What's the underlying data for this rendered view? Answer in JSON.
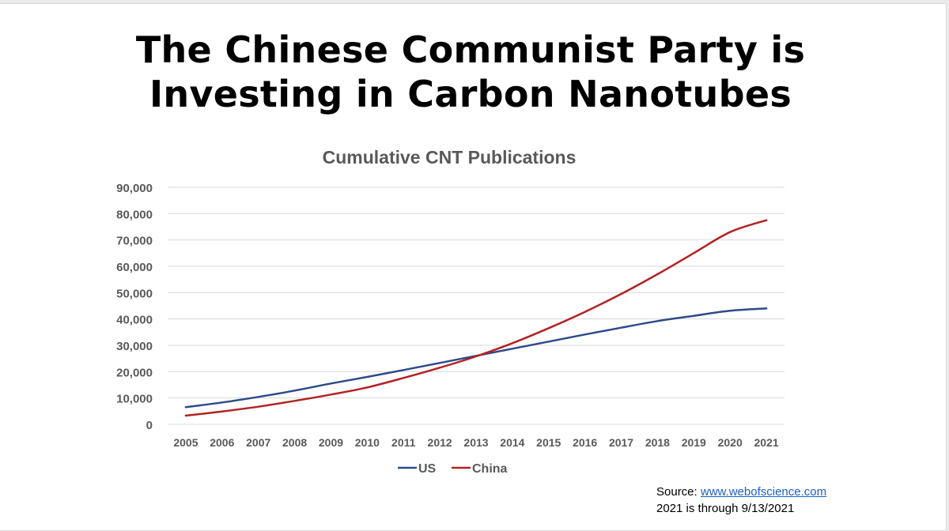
{
  "slide": {
    "title_line1": "The Chinese Communist Party is",
    "title_line2": "Investing in Carbon Nanotubes",
    "source_label": "Source:",
    "source_link": "www.webofscience.com",
    "note": "2021 is through 9/13/2021"
  },
  "colors": {
    "us": "#2e4a8b",
    "china": "#b22222",
    "grid": "#d9d9d9",
    "axis_text": "#595959"
  },
  "chart_data": {
    "type": "line",
    "title": "Cumulative CNT Publications",
    "xlabel": "",
    "ylabel": "",
    "categories": [
      "2005",
      "2006",
      "2007",
      "2008",
      "2009",
      "2010",
      "2011",
      "2012",
      "2013",
      "2014",
      "2015",
      "2016",
      "2017",
      "2018",
      "2019",
      "2020",
      "2021"
    ],
    "y_ticks": [
      "0",
      "10,000",
      "20,000",
      "30,000",
      "40,000",
      "50,000",
      "60,000",
      "70,000",
      "80,000",
      "90,000"
    ],
    "ylim": [
      0,
      90000
    ],
    "grid": true,
    "legend_position": "bottom",
    "series": [
      {
        "name": "US",
        "color": "#2e4a8b",
        "values": [
          6500,
          8300,
          10400,
          12800,
          15500,
          18000,
          20600,
          23300,
          26000,
          28700,
          31400,
          34100,
          36700,
          39200,
          41200,
          43100,
          44000
        ]
      },
      {
        "name": "China",
        "color": "#b22222",
        "values": [
          3300,
          4900,
          6700,
          8900,
          11300,
          14000,
          17600,
          21500,
          25800,
          30800,
          36500,
          42700,
          49500,
          57000,
          65000,
          73000,
          77500
        ]
      }
    ]
  }
}
